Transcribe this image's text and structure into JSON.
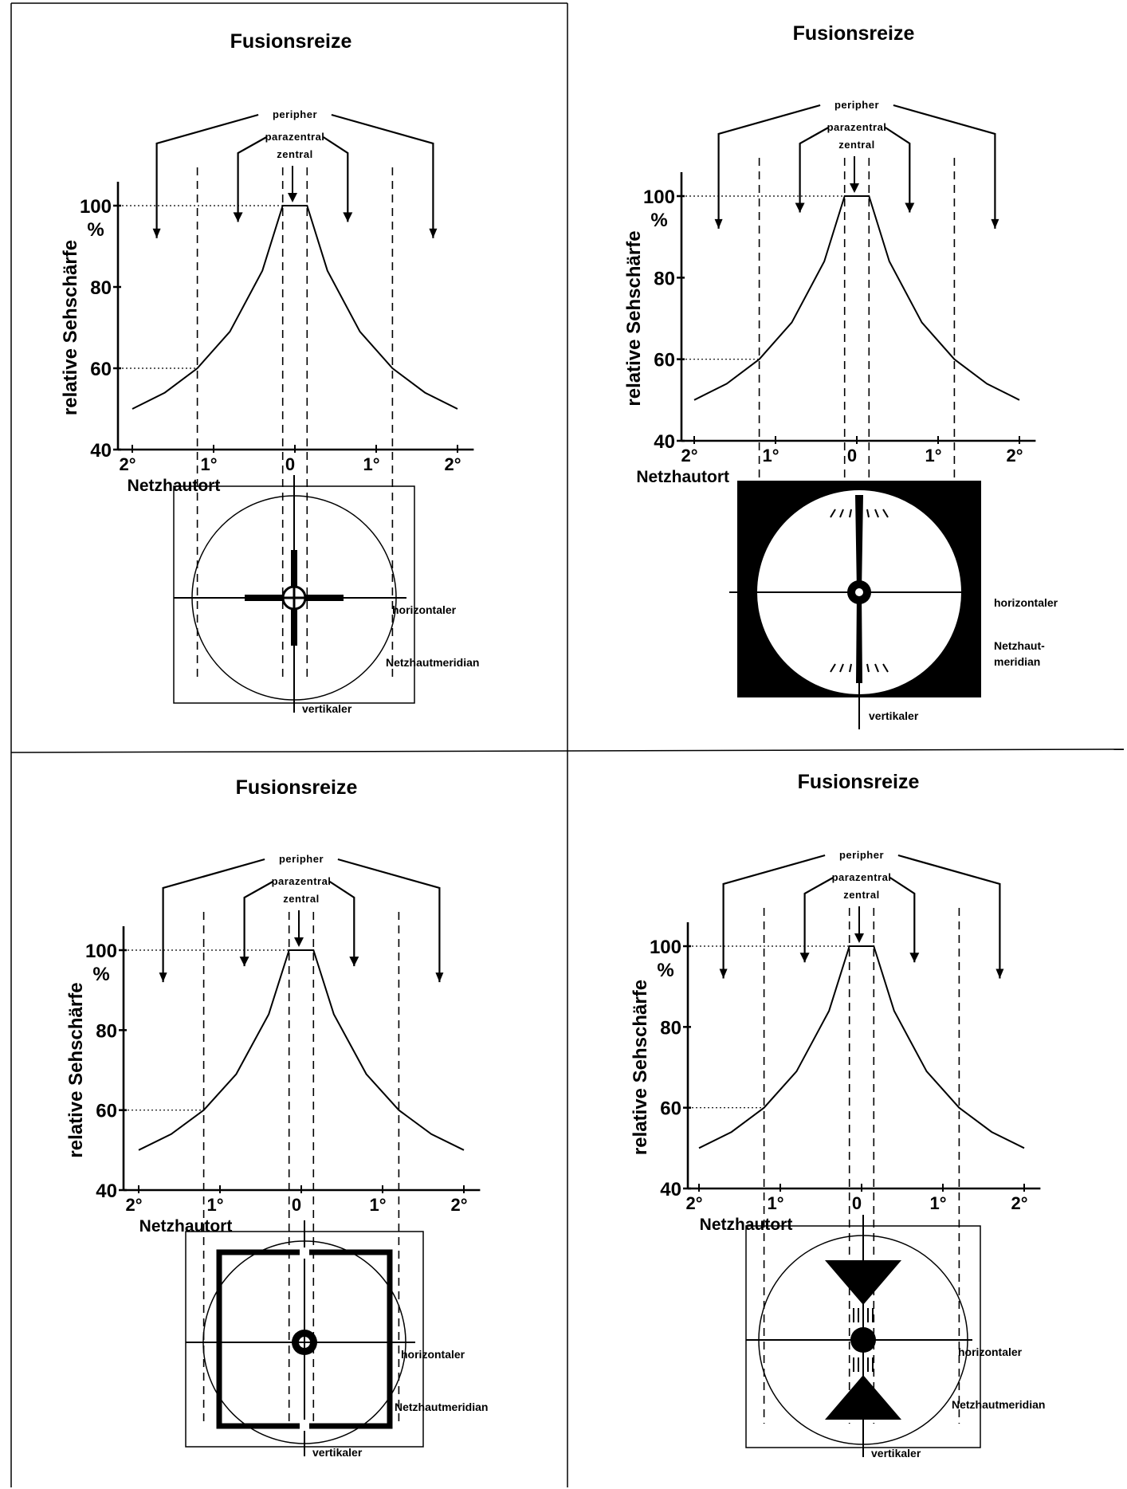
{
  "panels": [
    {
      "id": "top-left",
      "title": "Fusionsreize",
      "regions": {
        "peripheral": "peripher",
        "paracentral": "parazentral",
        "central": "zentral"
      },
      "y_axis": {
        "label": "relative Sehschärfe",
        "unit": "%",
        "ticks": [
          "40",
          "60",
          "80",
          "100"
        ]
      },
      "x_axis": {
        "label": "Netzhautort",
        "ticks": [
          "2°",
          "1°",
          "0",
          "1°",
          "2°"
        ]
      },
      "stimulus": "cross",
      "meridian_labels": {
        "horizontal": "horizontaler",
        "vertical": "vertikaler",
        "meridian": "Netzhautmeridian"
      }
    },
    {
      "id": "top-right",
      "title": "Fusionsreize",
      "regions": {
        "peripheral": "peripher",
        "paracentral": "parazentral",
        "central": "zentral"
      },
      "y_axis": {
        "label": "relative Sehschärfe",
        "unit": "%",
        "ticks": [
          "40",
          "60",
          "80",
          "100"
        ]
      },
      "x_axis": {
        "label": "Netzhautort",
        "ticks": [
          "2°",
          "1°",
          "0",
          "1°",
          "2°"
        ]
      },
      "stimulus": "inverted-circle",
      "meridian_labels": {
        "horizontal": "horizontaler",
        "vertical": "vertikaler",
        "meridian_line1": "Netzhaut-",
        "meridian_line2": "meridian"
      }
    },
    {
      "id": "bottom-left",
      "title": "Fusionsreize",
      "regions": {
        "peripheral": "peripher",
        "paracentral": "parazentral",
        "central": "zentral"
      },
      "y_axis": {
        "label": "relative Sehschärfe",
        "unit": "%",
        "ticks": [
          "40",
          "60",
          "80",
          "100"
        ]
      },
      "x_axis": {
        "label": "Netzhautort",
        "ticks": [
          "2°",
          "1°",
          "0",
          "1°",
          "2°"
        ]
      },
      "stimulus": "square",
      "meridian_labels": {
        "horizontal": "horizontaler",
        "vertical": "vertikaler",
        "meridian": "Netzhautmeridian"
      }
    },
    {
      "id": "bottom-right",
      "title": "Fusionsreize",
      "regions": {
        "peripheral": "peripher",
        "paracentral": "parazentral",
        "central": "zentral"
      },
      "y_axis": {
        "label": "relative Sehschärfe",
        "unit": "%",
        "ticks": [
          "40",
          "60",
          "80",
          "100"
        ]
      },
      "x_axis": {
        "label": "Netzhautort",
        "ticks": [
          "2°",
          "1°",
          "0",
          "1°",
          "2°"
        ]
      },
      "stimulus": "triangles",
      "meridian_labels": {
        "horizontal": "horizontaler",
        "vertical": "vertikaler",
        "meridian": "Netzhautmeridian"
      }
    }
  ],
  "acuity_curve": {
    "x_degrees": [
      -2,
      -1.6,
      -1.2,
      -0.8,
      -0.4,
      -0.15,
      0.15,
      0.4,
      0.8,
      1.2,
      1.6,
      2
    ],
    "y_percent": [
      50,
      54,
      60,
      69,
      84,
      100,
      100,
      84,
      69,
      60,
      54,
      50
    ],
    "zone_boundaries_degrees": [
      -1.2,
      -0.15,
      0.15,
      1.2
    ],
    "y_range": [
      40,
      100
    ],
    "x_range": [
      -2.1,
      2.1
    ]
  }
}
